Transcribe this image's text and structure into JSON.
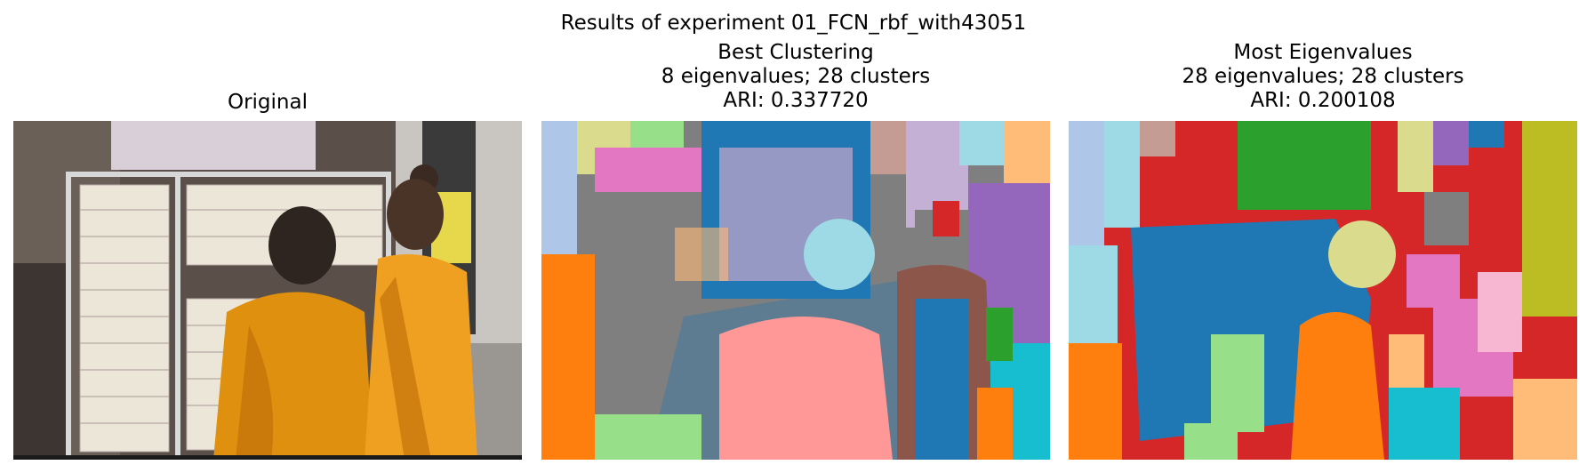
{
  "figure": {
    "suptitle": "Results of experiment 01_FCN_rbf_with43051"
  },
  "panels": [
    {
      "name": "original",
      "title_lines": [
        "Original"
      ],
      "image": "photograph of two monks in orange robes looking at lottery tickets on a display rack"
    },
    {
      "name": "best-clustering",
      "title_lines": [
        "Best Clustering",
        "8 eigenvalues; 28 clusters",
        "ARI: 0.337720"
      ],
      "image": "segmentation map with 28 colored clusters"
    },
    {
      "name": "most-eigenvalues",
      "title_lines": [
        "Most Eigenvalues",
        "28 eigenvalues; 28 clusters",
        "ARI: 0.200108"
      ],
      "image": "segmentation map with 28 colored clusters"
    }
  ],
  "palette": {
    "blue": "#1f77b4",
    "orange": "#ff7f0e",
    "green": "#2ca02c",
    "red": "#d62728",
    "purple": "#9467bd",
    "brown": "#8c564b",
    "pink": "#e377c2",
    "gray": "#7f7f7f",
    "olive": "#bcbd22",
    "cyan": "#17becf",
    "lightblue": "#aec7e8",
    "lightorange": "#ffbb78",
    "lightgreen": "#98df8a",
    "lightred": "#ff9896",
    "lightpurple": "#c5b0d5",
    "lightbrown": "#c49c94",
    "lightpink": "#f7b6d2",
    "lightgray": "#c7c7c7",
    "lightolive": "#dbdb8d",
    "lightcyan": "#9edae5",
    "robe": "#e8950f",
    "wall": "#7a6f66"
  }
}
